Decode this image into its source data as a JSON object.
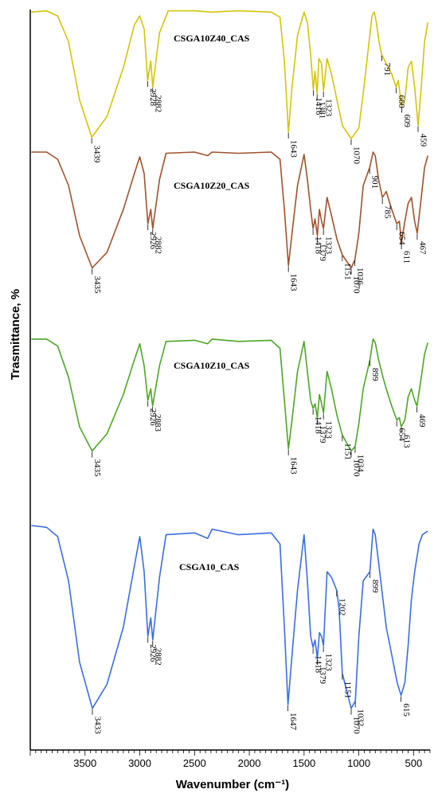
{
  "chart_data": {
    "type": "line",
    "xlabel": "Wavenumber (cm⁻¹)",
    "ylabel": "Trasmittance, %",
    "xlim": [
      4000,
      350
    ],
    "x_reversed": true,
    "x_ticks": [
      3500,
      3000,
      2500,
      2000,
      1500,
      1000,
      500
    ],
    "series": [
      {
        "name": "CSGA10Z40_CAS",
        "color": "#d4c40c",
        "points": [
          [
            3990,
            0.02
          ],
          [
            3850,
            0.01
          ],
          [
            3750,
            0.05
          ],
          [
            3650,
            0.25
          ],
          [
            3550,
            0.7
          ],
          [
            3439,
            0.99
          ],
          [
            3300,
            0.83
          ],
          [
            3150,
            0.45
          ],
          [
            3050,
            0.12
          ],
          [
            3000,
            0.05
          ],
          [
            2960,
            0.15
          ],
          [
            2928,
            0.55
          ],
          [
            2900,
            0.4
          ],
          [
            2882,
            0.6
          ],
          [
            2820,
            0.18
          ],
          [
            2740,
            0.01
          ],
          [
            2500,
            0.01
          ],
          [
            2350,
            0.02
          ],
          [
            2100,
            0.01
          ],
          [
            1800,
            0.02
          ],
          [
            1720,
            0.06
          ],
          [
            1680,
            0.4
          ],
          [
            1643,
            0.95
          ],
          [
            1610,
            0.6
          ],
          [
            1560,
            0.2
          ],
          [
            1500,
            0.02
          ],
          [
            1470,
            0.1
          ],
          [
            1440,
            0.35
          ],
          [
            1416,
            0.62
          ],
          [
            1400,
            0.48
          ],
          [
            1381,
            0.65
          ],
          [
            1365,
            0.38
          ],
          [
            1340,
            0.42
          ],
          [
            1323,
            0.63
          ],
          [
            1290,
            0.38
          ],
          [
            1250,
            0.5
          ],
          [
            1200,
            0.7
          ],
          [
            1150,
            0.9
          ],
          [
            1070,
            1.0
          ],
          [
            1000,
            0.92
          ],
          [
            960,
            0.65
          ],
          [
            920,
            0.35
          ],
          [
            880,
            0.05
          ],
          [
            860,
            0.02
          ],
          [
            840,
            0.1
          ],
          [
            815,
            0.25
          ],
          [
            791,
            0.35
          ],
          [
            750,
            0.42
          ],
          [
            700,
            0.5
          ],
          [
            660,
            0.6
          ],
          [
            640,
            0.55
          ],
          [
            609,
            0.75
          ],
          [
            580,
            0.7
          ],
          [
            550,
            0.45
          ],
          [
            520,
            0.4
          ],
          [
            490,
            0.6
          ],
          [
            459,
            0.9
          ],
          [
            430,
            0.6
          ],
          [
            400,
            0.25
          ],
          [
            370,
            0.1
          ]
        ],
        "peaks": [
          3439,
          2928,
          2882,
          1643,
          1416,
          1381,
          1323,
          1070,
          791,
          660,
          609,
          459
        ]
      },
      {
        "name": "CSGA10Z20_CAS",
        "color": "#a0522d",
        "points": [
          [
            3990,
            0.02
          ],
          [
            3850,
            0.02
          ],
          [
            3750,
            0.08
          ],
          [
            3650,
            0.3
          ],
          [
            3550,
            0.72
          ],
          [
            3435,
            0.99
          ],
          [
            3300,
            0.86
          ],
          [
            3150,
            0.5
          ],
          [
            3050,
            0.2
          ],
          [
            3000,
            0.06
          ],
          [
            2960,
            0.2
          ],
          [
            2926,
            0.62
          ],
          [
            2900,
            0.5
          ],
          [
            2882,
            0.66
          ],
          [
            2820,
            0.25
          ],
          [
            2760,
            0.03
          ],
          [
            2500,
            0.02
          ],
          [
            2380,
            0.05
          ],
          [
            2340,
            0.02
          ],
          [
            2100,
            0.03
          ],
          [
            1800,
            0.02
          ],
          [
            1720,
            0.08
          ],
          [
            1680,
            0.5
          ],
          [
            1643,
            0.97
          ],
          [
            1610,
            0.7
          ],
          [
            1560,
            0.3
          ],
          [
            1500,
            0.04
          ],
          [
            1470,
            0.25
          ],
          [
            1440,
            0.5
          ],
          [
            1418,
            0.66
          ],
          [
            1400,
            0.58
          ],
          [
            1379,
            0.72
          ],
          [
            1360,
            0.5
          ],
          [
            1340,
            0.6
          ],
          [
            1323,
            0.66
          ],
          [
            1290,
            0.4
          ],
          [
            1250,
            0.55
          ],
          [
            1200,
            0.75
          ],
          [
            1151,
            0.88
          ],
          [
            1070,
            0.99
          ],
          [
            1036,
            0.92
          ],
          [
            1000,
            0.7
          ],
          [
            960,
            0.3
          ],
          [
            901,
            0.15
          ],
          [
            870,
            0.02
          ],
          [
            850,
            0.05
          ],
          [
            820,
            0.25
          ],
          [
            785,
            0.4
          ],
          [
            750,
            0.35
          ],
          [
            700,
            0.5
          ],
          [
            654,
            0.62
          ],
          [
            630,
            0.6
          ],
          [
            611,
            0.78
          ],
          [
            580,
            0.6
          ],
          [
            550,
            0.45
          ],
          [
            520,
            0.4
          ],
          [
            490,
            0.6
          ],
          [
            467,
            0.7
          ],
          [
            430,
            0.4
          ],
          [
            400,
            0.15
          ],
          [
            370,
            0.05
          ]
        ],
        "peaks": [
          3435,
          2926,
          2882,
          1643,
          1418,
          1379,
          1323,
          1151,
          1070,
          1036,
          901,
          785,
          654,
          611,
          467
        ]
      },
      {
        "name": "CSGA10Z10_CAS",
        "color": "#4ea626",
        "points": [
          [
            3990,
            0.02
          ],
          [
            3850,
            0.02
          ],
          [
            3750,
            0.08
          ],
          [
            3650,
            0.35
          ],
          [
            3550,
            0.78
          ],
          [
            3435,
            0.99
          ],
          [
            3300,
            0.84
          ],
          [
            3150,
            0.5
          ],
          [
            3050,
            0.2
          ],
          [
            3000,
            0.06
          ],
          [
            2960,
            0.25
          ],
          [
            2926,
            0.55
          ],
          [
            2900,
            0.45
          ],
          [
            2883,
            0.6
          ],
          [
            2820,
            0.25
          ],
          [
            2760,
            0.04
          ],
          [
            2500,
            0.03
          ],
          [
            2380,
            0.06
          ],
          [
            2340,
            0.02
          ],
          [
            2100,
            0.04
          ],
          [
            1800,
            0.03
          ],
          [
            1720,
            0.1
          ],
          [
            1680,
            0.55
          ],
          [
            1643,
            0.97
          ],
          [
            1610,
            0.72
          ],
          [
            1560,
            0.3
          ],
          [
            1500,
            0.04
          ],
          [
            1470,
            0.3
          ],
          [
            1440,
            0.55
          ],
          [
            1418,
            0.62
          ],
          [
            1400,
            0.58
          ],
          [
            1379,
            0.7
          ],
          [
            1360,
            0.5
          ],
          [
            1340,
            0.58
          ],
          [
            1323,
            0.66
          ],
          [
            1290,
            0.3
          ],
          [
            1250,
            0.45
          ],
          [
            1200,
            0.68
          ],
          [
            1151,
            0.85
          ],
          [
            1070,
            0.99
          ],
          [
            1034,
            0.95
          ],
          [
            1000,
            0.75
          ],
          [
            960,
            0.45
          ],
          [
            899,
            0.2
          ],
          [
            870,
            0.02
          ],
          [
            850,
            0.05
          ],
          [
            820,
            0.2
          ],
          [
            780,
            0.35
          ],
          [
            750,
            0.45
          ],
          [
            700,
            0.6
          ],
          [
            654,
            0.72
          ],
          [
            630,
            0.7
          ],
          [
            613,
            0.78
          ],
          [
            580,
            0.72
          ],
          [
            550,
            0.52
          ],
          [
            520,
            0.45
          ],
          [
            490,
            0.55
          ],
          [
            469,
            0.6
          ],
          [
            430,
            0.35
          ],
          [
            400,
            0.15
          ],
          [
            370,
            0.05
          ]
        ],
        "peaks": [
          3435,
          2926,
          2883,
          1643,
          1418,
          1379,
          1323,
          1151,
          1070,
          1034,
          899,
          654,
          613,
          469
        ]
      },
      {
        "name": "CSGA10_CAS",
        "color": "#3a6ee0",
        "points": [
          [
            3990,
            0.0
          ],
          [
            3850,
            0.01
          ],
          [
            3750,
            0.06
          ],
          [
            3650,
            0.3
          ],
          [
            3550,
            0.74
          ],
          [
            3433,
            0.99
          ],
          [
            3300,
            0.86
          ],
          [
            3150,
            0.55
          ],
          [
            3050,
            0.22
          ],
          [
            3000,
            0.06
          ],
          [
            2960,
            0.25
          ],
          [
            2926,
            0.6
          ],
          [
            2900,
            0.5
          ],
          [
            2882,
            0.62
          ],
          [
            2820,
            0.28
          ],
          [
            2760,
            0.05
          ],
          [
            2500,
            0.04
          ],
          [
            2380,
            0.07
          ],
          [
            2340,
            0.02
          ],
          [
            2100,
            0.05
          ],
          [
            1800,
            0.04
          ],
          [
            1720,
            0.1
          ],
          [
            1680,
            0.55
          ],
          [
            1647,
            0.97
          ],
          [
            1610,
            0.7
          ],
          [
            1560,
            0.35
          ],
          [
            1500,
            0.05
          ],
          [
            1470,
            0.3
          ],
          [
            1440,
            0.6
          ],
          [
            1418,
            0.66
          ],
          [
            1400,
            0.62
          ],
          [
            1379,
            0.72
          ],
          [
            1360,
            0.58
          ],
          [
            1340,
            0.6
          ],
          [
            1323,
            0.65
          ],
          [
            1290,
            0.25
          ],
          [
            1250,
            0.28
          ],
          [
            1202,
            0.35
          ],
          [
            1180,
            0.45
          ],
          [
            1151,
            0.8
          ],
          [
            1070,
            0.99
          ],
          [
            1032,
            0.95
          ],
          [
            1000,
            0.6
          ],
          [
            960,
            0.3
          ],
          [
            899,
            0.25
          ],
          [
            870,
            0.02
          ],
          [
            850,
            0.05
          ],
          [
            820,
            0.2
          ],
          [
            780,
            0.4
          ],
          [
            750,
            0.55
          ],
          [
            700,
            0.7
          ],
          [
            650,
            0.85
          ],
          [
            615,
            0.92
          ],
          [
            580,
            0.85
          ],
          [
            550,
            0.65
          ],
          [
            520,
            0.4
          ],
          [
            490,
            0.25
          ],
          [
            450,
            0.1
          ],
          [
            420,
            0.05
          ],
          [
            370,
            0.03
          ]
        ],
        "peaks": [
          3433,
          2926,
          2882,
          1647,
          1418,
          1379,
          1323,
          1202,
          1151,
          1070,
          1032,
          899,
          615
        ]
      }
    ]
  }
}
